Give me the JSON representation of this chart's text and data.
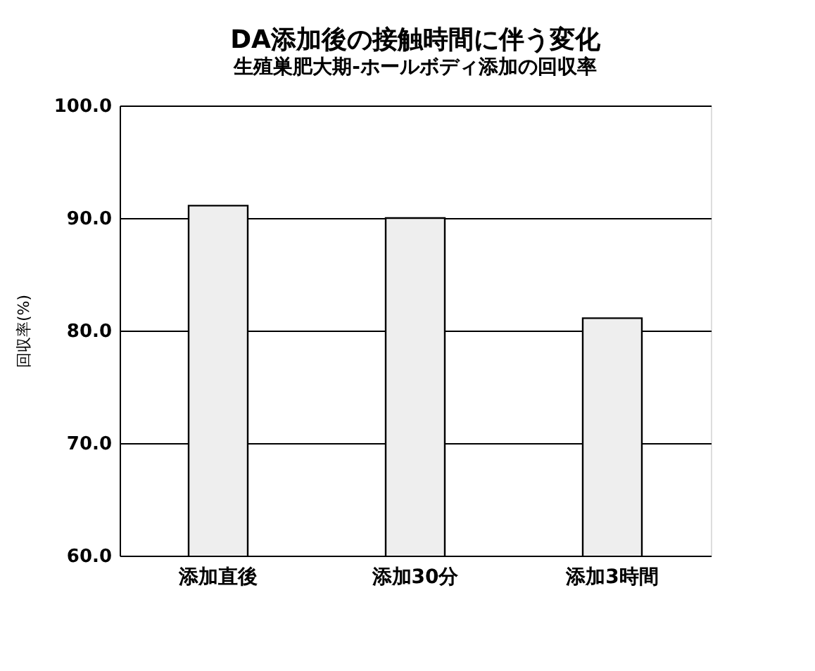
{
  "chart_data": {
    "type": "bar",
    "title": "DA添加後の接触時間に伴う変化",
    "subtitle": "生殖巣肥大期-ホールボディ添加の回収率",
    "ylabel": "回収率(%)",
    "categories": [
      "添加直後",
      "添加30分",
      "添加3時間"
    ],
    "values": [
      91.1,
      90.0,
      81.1
    ],
    "color": "#eeeeee",
    "ylim": [
      60,
      100
    ],
    "yticks": [
      {
        "value": 60,
        "label": "60.0"
      },
      {
        "value": 70,
        "label": "70.0"
      },
      {
        "value": 80,
        "label": "80.0"
      },
      {
        "value": 90,
        "label": "90.0"
      },
      {
        "value": 100,
        "label": "100.0"
      }
    ],
    "grid": "y"
  }
}
